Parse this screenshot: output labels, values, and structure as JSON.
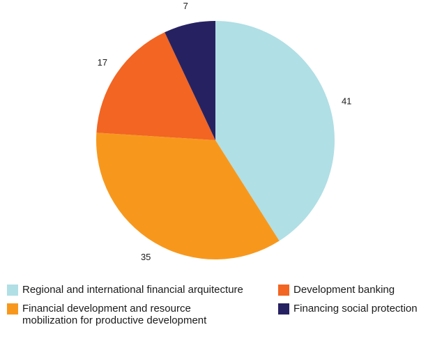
{
  "chart_data": {
    "type": "pie",
    "title": "",
    "slices": [
      {
        "label": "Regional and international financial arquitecture",
        "value": 41,
        "color": "#b0dfe5"
      },
      {
        "label": "Financial development and resource mobilization for productive development",
        "value": 35,
        "color": "#f7981d"
      },
      {
        "label": "Development banking",
        "value": 17,
        "color": "#f26522"
      },
      {
        "label": "Financing social protection",
        "value": 7,
        "color": "#262262"
      }
    ],
    "data_labels": [
      "41",
      "35",
      "17",
      "7"
    ],
    "legend": {
      "placement": "bottom",
      "entries": [
        "Regional and international financial arquitecture",
        "Development banking",
        "Financial development and resource mobilization for productive development",
        "Financing social protection"
      ]
    }
  }
}
